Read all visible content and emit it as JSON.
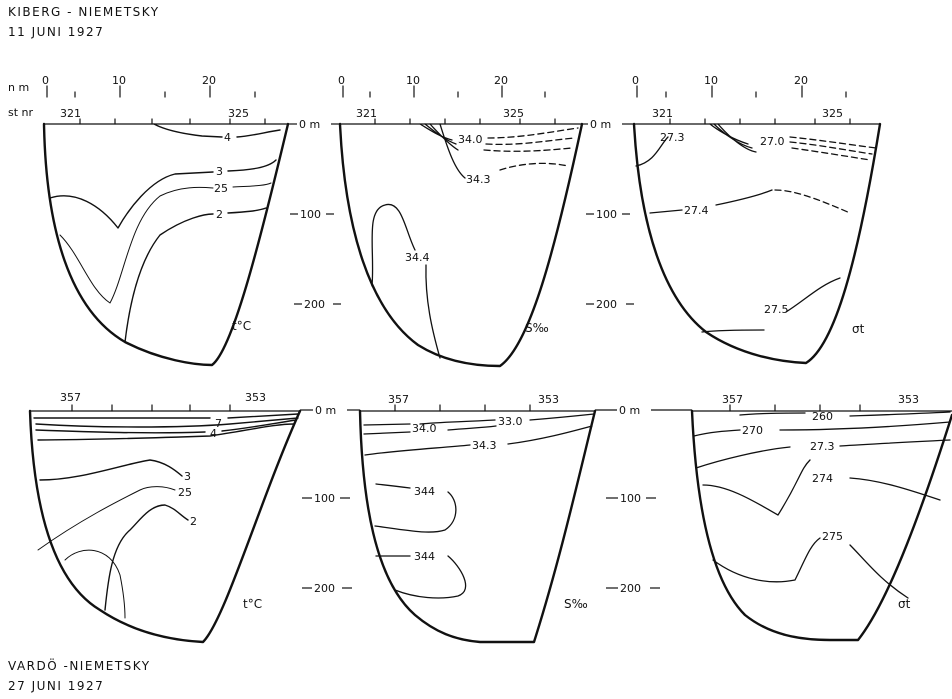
{
  "captions": {
    "top": [
      "KIBERG - NIEMETSKY",
      "11 JUNI 1927"
    ],
    "bottom": [
      "VARDÖ -NIEMETSKY",
      "27 JUNI 1927"
    ]
  },
  "axes": {
    "nm_label": "n m",
    "st_label": "st nr",
    "distance_ticks": [
      "0",
      "10",
      "20"
    ],
    "depth_labels": [
      "0 m",
      "100",
      "200"
    ]
  },
  "stations": {
    "top": [
      "321",
      "325"
    ],
    "bottom": [
      "357",
      "353"
    ]
  },
  "units": {
    "temperature": "t°C",
    "salinity": "S‰",
    "density": "σt"
  },
  "isolines": {
    "top_temperature": [
      "4",
      "3",
      "25",
      "2"
    ],
    "top_salinity": [
      "34.0",
      "34.3",
      "34.4"
    ],
    "top_density": [
      "27.3",
      "27.0",
      "27.4",
      "27.5"
    ],
    "bottom_temperature": [
      "7",
      "4",
      "3",
      "25",
      "2"
    ],
    "bottom_salinity": [
      "34.0",
      "33.0",
      "34.3",
      "344",
      "344"
    ],
    "bottom_density": [
      "270",
      "260",
      "27.3",
      "274",
      "275"
    ]
  }
}
